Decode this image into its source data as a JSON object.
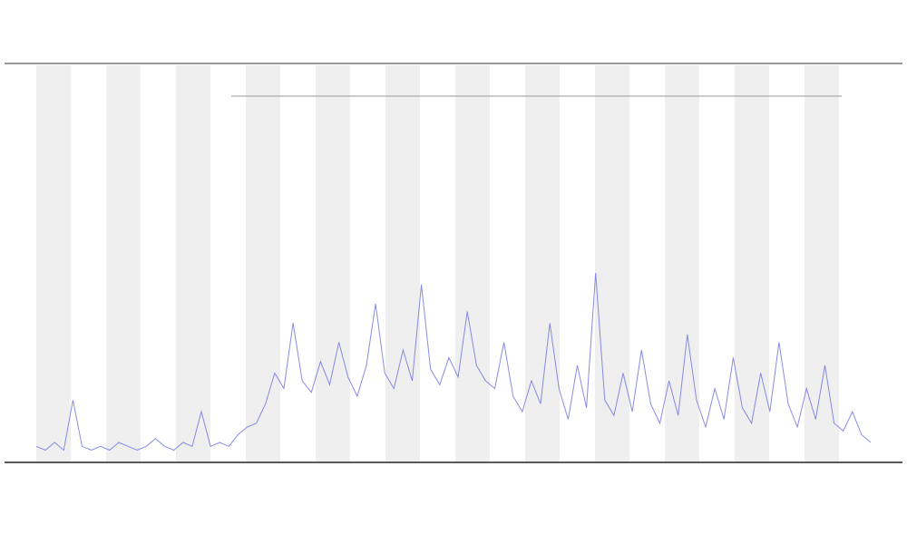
{
  "chart_data": {
    "type": "line",
    "color": "#6b6fe0",
    "ylim": [
      0,
      100
    ],
    "values": [
      3,
      2,
      4,
      2,
      15,
      3,
      2,
      3,
      2,
      4,
      3,
      2,
      3,
      5,
      3,
      2,
      4,
      3,
      12,
      3,
      4,
      3,
      6,
      8,
      9,
      14,
      22,
      18,
      35,
      20,
      17,
      25,
      19,
      30,
      21,
      16,
      24,
      40,
      22,
      18,
      28,
      20,
      45,
      23,
      19,
      26,
      21,
      38,
      24,
      20,
      18,
      30,
      16,
      12,
      20,
      14,
      35,
      18,
      10,
      24,
      13,
      48,
      15,
      11,
      22,
      12,
      28,
      14,
      9,
      20,
      11,
      32,
      15,
      8,
      18,
      10,
      26,
      13,
      9,
      22,
      12,
      30,
      14,
      8,
      18,
      10,
      24,
      9,
      7,
      12,
      6,
      4
    ]
  }
}
